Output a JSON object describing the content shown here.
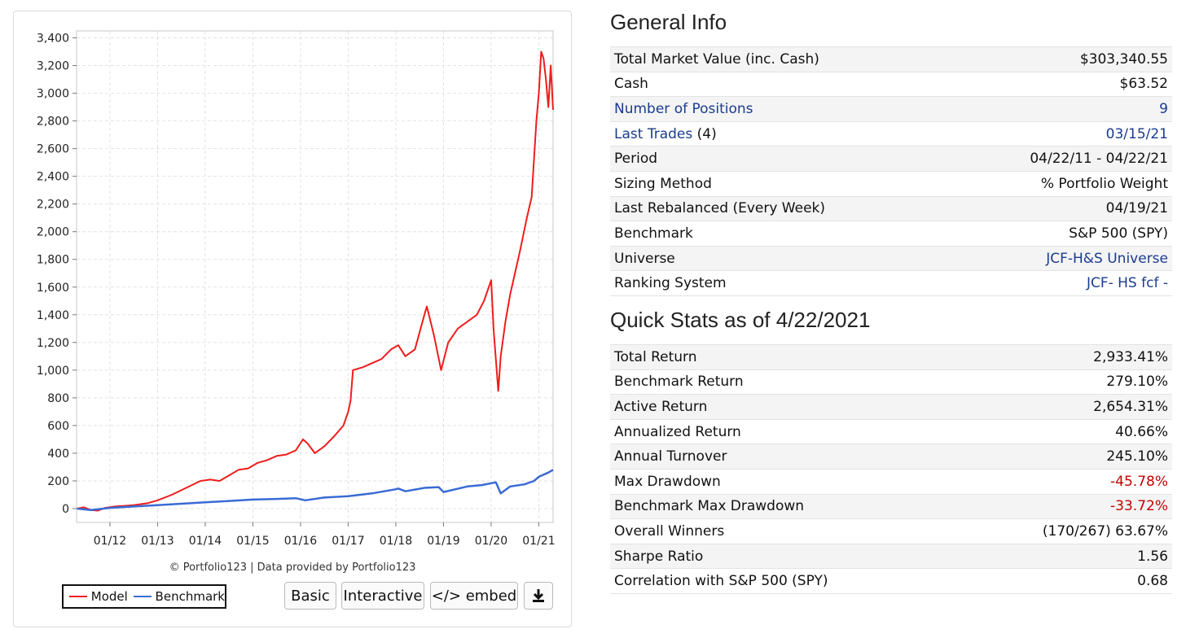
{
  "chart": {
    "copyright": "© Portfolio123 | Data provided by Portfolio123",
    "legend": {
      "model": "Model",
      "benchmark": "Benchmark"
    },
    "colors": {
      "model": "#f01c1c",
      "benchmark": "#3a6bd4"
    },
    "buttons": {
      "basic": "Basic",
      "interactive": "Interactive",
      "embed": "</> embed",
      "download_icon": "download-icon"
    }
  },
  "chart_data": {
    "type": "line",
    "title": "",
    "xlabel": "",
    "ylabel": "",
    "ylim": [
      -100,
      3450
    ],
    "yticks": [
      0,
      200,
      400,
      600,
      800,
      1000,
      1200,
      1400,
      1600,
      1800,
      2000,
      2200,
      2400,
      2600,
      2800,
      3000,
      3200,
      3400
    ],
    "ytick_labels": [
      "0",
      "200",
      "400",
      "600",
      "800",
      "1,000",
      "1,200",
      "1,400",
      "1,600",
      "1,800",
      "2,000",
      "2,200",
      "2,400",
      "2,600",
      "2,800",
      "3,000",
      "3,200",
      "3,400"
    ],
    "xlim": [
      2011.3,
      2021.3
    ],
    "xticks": [
      2012,
      2013,
      2014,
      2015,
      2016,
      2017,
      2018,
      2019,
      2020,
      2021
    ],
    "xtick_labels": [
      "01/12",
      "01/13",
      "01/14",
      "01/15",
      "01/16",
      "01/17",
      "01/18",
      "01/19",
      "01/20",
      "01/21"
    ],
    "grid": true,
    "legend_position": "bottom-left",
    "series": [
      {
        "name": "Model",
        "x": [
          2011.31,
          2011.45,
          2011.6,
          2011.75,
          2011.9,
          2012.1,
          2012.3,
          2012.5,
          2012.8,
          2013.0,
          2013.3,
          2013.6,
          2013.9,
          2014.1,
          2014.3,
          2014.5,
          2014.7,
          2014.9,
          2015.1,
          2015.3,
          2015.5,
          2015.7,
          2015.9,
          2016.05,
          2016.15,
          2016.3,
          2016.5,
          2016.7,
          2016.9,
          2017.0,
          2017.05,
          2017.1,
          2017.3,
          2017.5,
          2017.7,
          2017.9,
          2018.05,
          2018.2,
          2018.4,
          2018.6,
          2018.65,
          2018.8,
          2018.95,
          2019.1,
          2019.3,
          2019.5,
          2019.7,
          2019.85,
          2020.0,
          2020.05,
          2020.15,
          2020.2,
          2020.3,
          2020.4,
          2020.6,
          2020.75,
          2020.85,
          2020.95,
          2021.0,
          2021.05,
          2021.1,
          2021.15,
          2021.2,
          2021.25,
          2021.3
        ],
        "values": [
          0,
          10,
          -10,
          -15,
          5,
          15,
          20,
          25,
          40,
          60,
          100,
          150,
          200,
          210,
          200,
          240,
          280,
          290,
          330,
          350,
          380,
          390,
          420,
          500,
          470,
          400,
          450,
          520,
          600,
          700,
          780,
          1000,
          1020,
          1050,
          1080,
          1150,
          1180,
          1100,
          1150,
          1400,
          1460,
          1250,
          1000,
          1200,
          1300,
          1350,
          1400,
          1500,
          1650,
          1300,
          850,
          1100,
          1350,
          1550,
          1850,
          2100,
          2250,
          2800,
          3000,
          3300,
          3250,
          3100,
          2900,
          3200,
          2880
        ]
      },
      {
        "name": "Benchmark",
        "x": [
          2011.31,
          2011.6,
          2012.0,
          2012.5,
          2013.0,
          2013.5,
          2014.0,
          2014.5,
          2015.0,
          2015.5,
          2015.9,
          2016.1,
          2016.5,
          2017.0,
          2017.5,
          2018.0,
          2018.05,
          2018.2,
          2018.6,
          2018.9,
          2019.0,
          2019.5,
          2019.8,
          2020.1,
          2020.2,
          2020.4,
          2020.7,
          2020.9,
          2021.0,
          2021.2,
          2021.3
        ],
        "values": [
          0,
          -10,
          5,
          15,
          25,
          35,
          45,
          55,
          65,
          70,
          75,
          60,
          80,
          90,
          110,
          140,
          145,
          125,
          150,
          155,
          120,
          160,
          170,
          190,
          110,
          160,
          175,
          200,
          230,
          260,
          280
        ]
      }
    ]
  },
  "general_info": {
    "heading": "General Info",
    "rows": [
      {
        "label": "Total Market Value (inc. Cash)",
        "value": "$303,340.55"
      },
      {
        "label": "Cash",
        "value": "$63.52"
      },
      {
        "label": "Number of Positions",
        "value": "9"
      },
      {
        "label": "Last Trades",
        "label_suffix": "(4)",
        "value": "03/15/21"
      },
      {
        "label": "Period",
        "value": "04/22/11 - 04/22/21"
      },
      {
        "label": "Sizing Method",
        "value": "% Portfolio Weight"
      },
      {
        "label": "Last Rebalanced (Every Week)",
        "value": "04/19/21"
      },
      {
        "label": "Benchmark",
        "value": "S&P 500 (SPY)"
      },
      {
        "label": "Universe",
        "value": "JCF-H&S Universe"
      },
      {
        "label": "Ranking System",
        "value": "JCF- HS fcf -"
      }
    ]
  },
  "quick_stats": {
    "heading": "Quick Stats as of 4/22/2021",
    "rows": [
      {
        "label": "Total Return",
        "value": "2,933.41%"
      },
      {
        "label": "Benchmark Return",
        "value": "279.10%"
      },
      {
        "label": "Active Return",
        "value": "2,654.31%"
      },
      {
        "label": "Annualized Return",
        "value": "40.66%"
      },
      {
        "label": "Annual Turnover",
        "value": "245.10%"
      },
      {
        "label": "Max Drawdown",
        "value": "-45.78%"
      },
      {
        "label": "Benchmark Max Drawdown",
        "value": "-33.72%"
      },
      {
        "label": "Overall Winners",
        "value": "(170/267) 63.67%"
      },
      {
        "label": "Sharpe Ratio",
        "value": "1.56"
      },
      {
        "label": "Correlation with S&P 500 (SPY)",
        "value": "0.68"
      }
    ]
  },
  "colors": {
    "link": "#1a3b8f",
    "negative": "#c40000",
    "row_alt": "#f4f4f4"
  }
}
